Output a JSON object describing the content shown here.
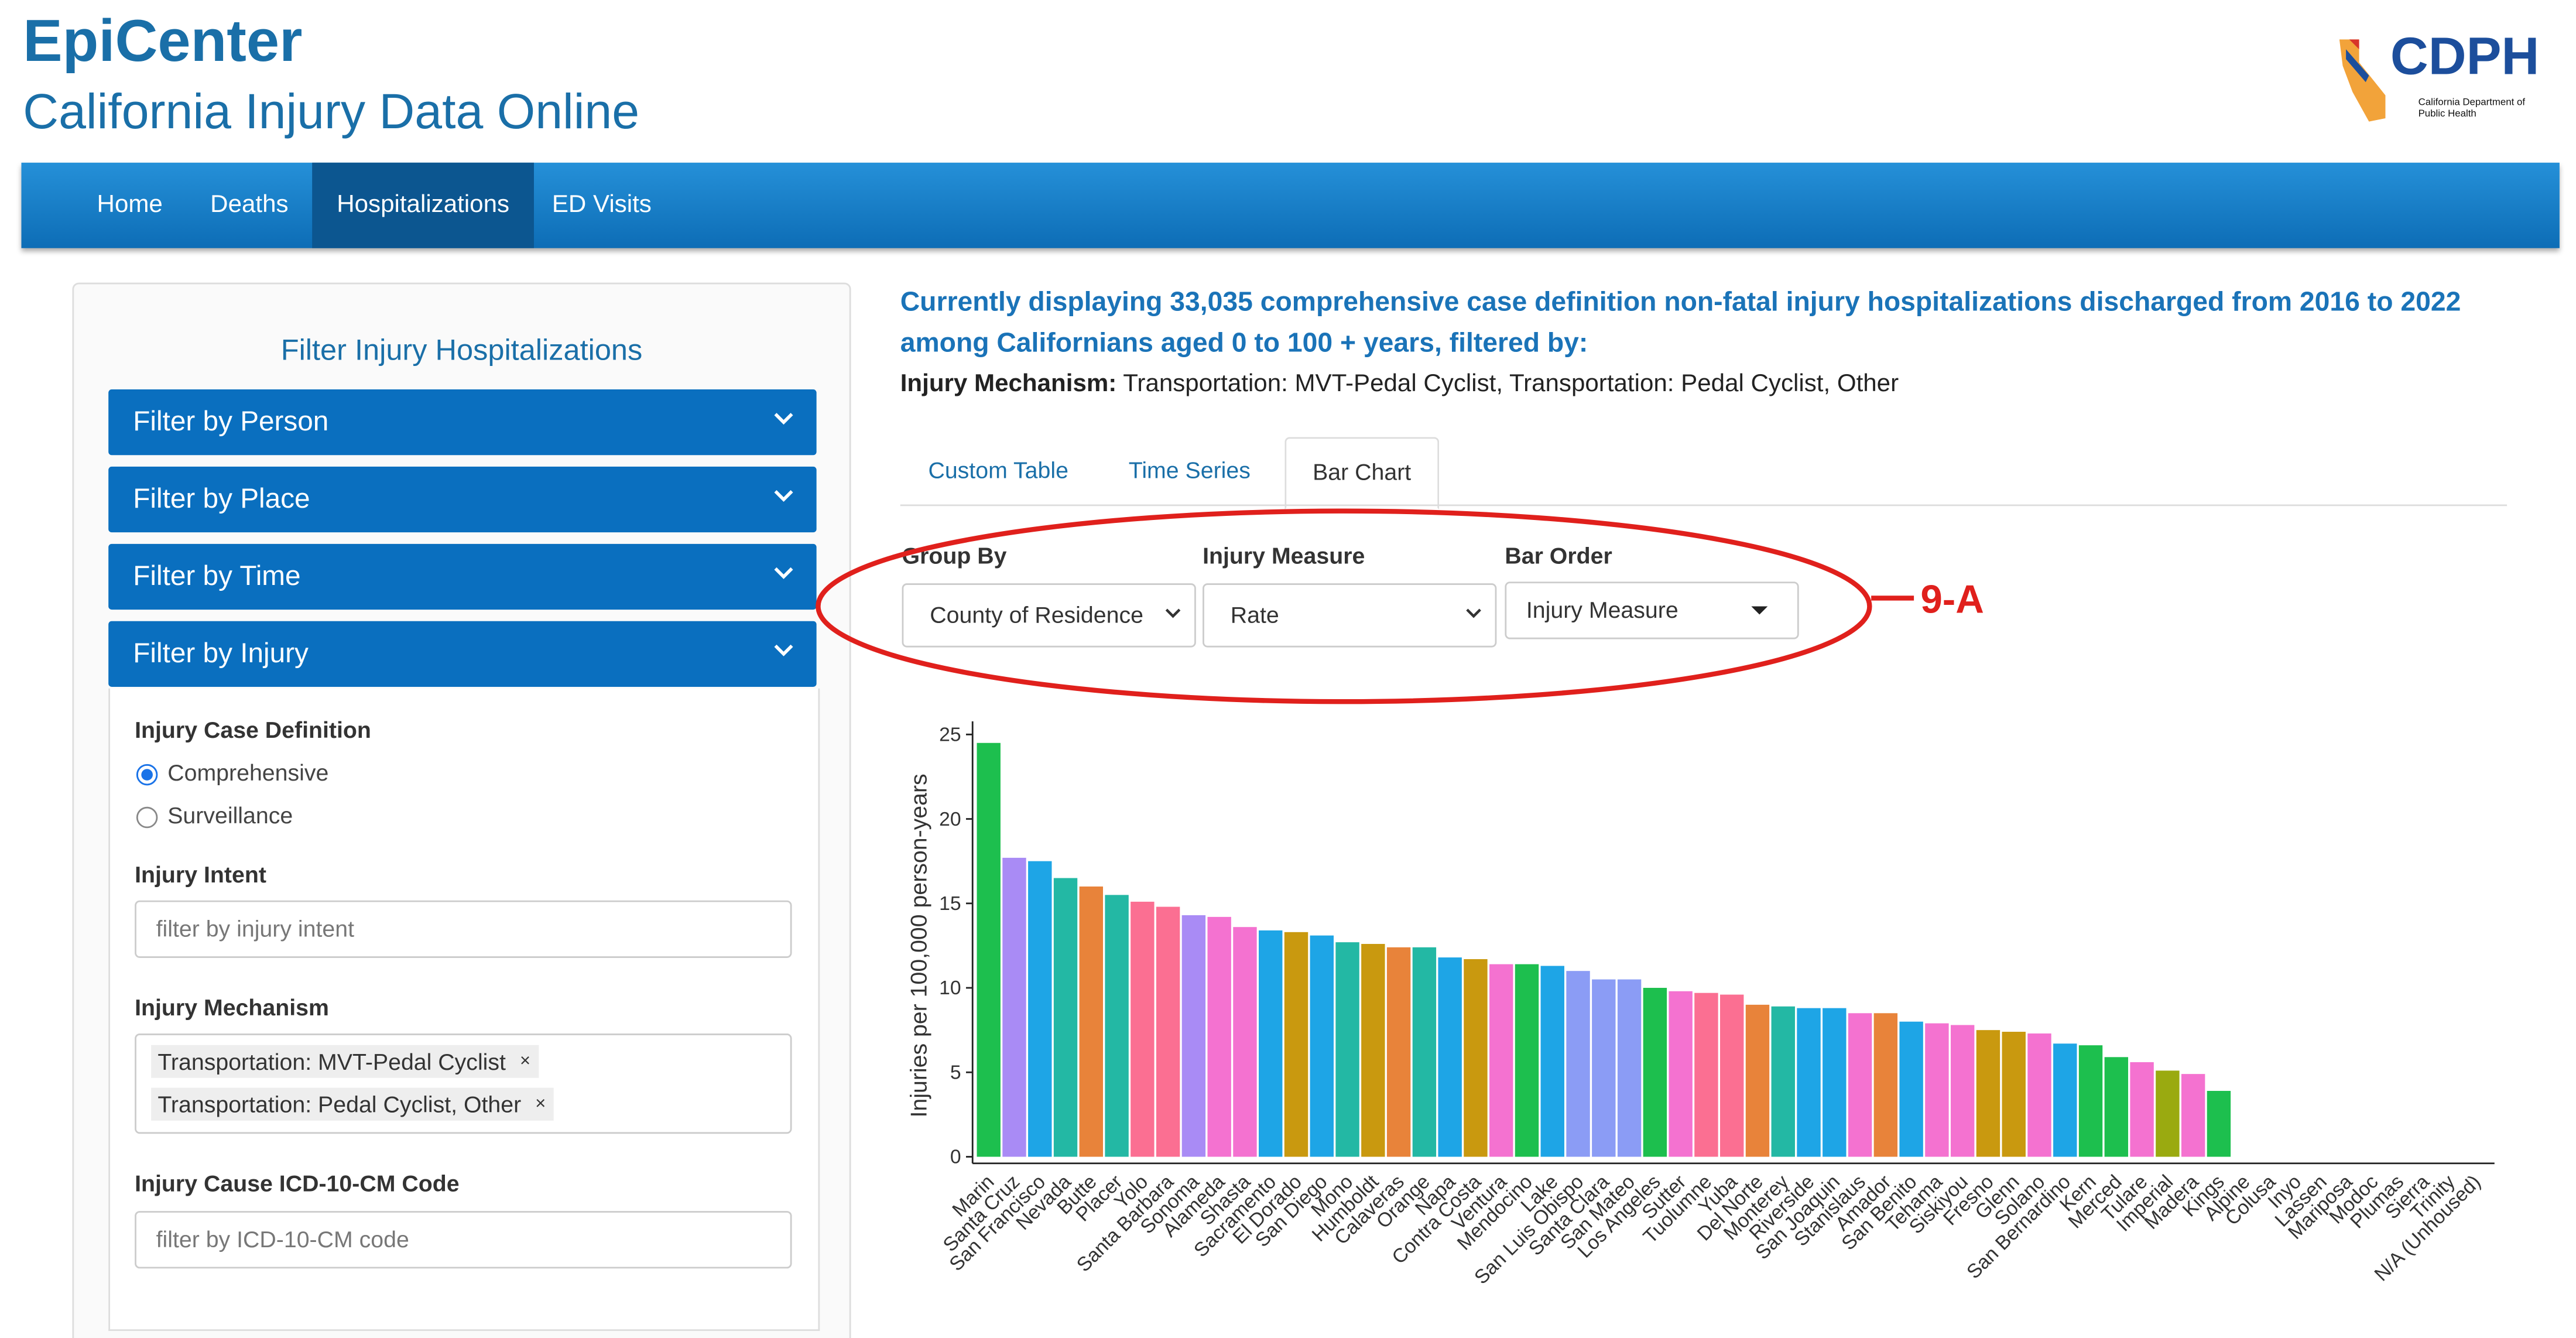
{
  "header": {
    "title": "EpiCenter",
    "subtitle": "California Injury Data Online",
    "logo_text": "CDPH",
    "logo_subtext": "California Department of Public Health"
  },
  "nav": {
    "items": [
      "Home",
      "Deaths",
      "Hospitalizations",
      "ED Visits"
    ],
    "active": 2
  },
  "filter_panel": {
    "title": "Filter Injury Hospitalizations",
    "sections": [
      "Filter by Person",
      "Filter by Place",
      "Filter by Time",
      "Filter by Injury"
    ],
    "case_definition": {
      "label": "Injury Case Definition",
      "options": [
        "Comprehensive",
        "Surveillance"
      ],
      "selected": 0
    },
    "intent": {
      "label": "Injury Intent",
      "placeholder": "filter by injury intent"
    },
    "mechanism": {
      "label": "Injury Mechanism",
      "tags": [
        "Transportation: MVT-Pedal Cyclist",
        "Transportation: Pedal Cyclist, Other"
      ]
    },
    "icd_code": {
      "label": "Injury Cause ICD-10-CM Code",
      "placeholder": "filter by ICD-10-CM code"
    }
  },
  "description": {
    "headline": "Currently displaying 33,035 comprehensive case definition non-fatal injury hospitalizations discharged from 2016 to 2022 among Californians aged 0 to 100 + years, filtered by:",
    "filter_label": "Injury Mechanism:",
    "filter_value": "Transportation: MVT-Pedal Cyclist, Transportation: Pedal Cyclist, Other"
  },
  "tabs": {
    "items": [
      "Custom Table",
      "Time Series",
      "Bar Chart"
    ],
    "active": 2
  },
  "controls": [
    {
      "label": "Group By",
      "value": "County of Residence"
    },
    {
      "label": "Injury Measure",
      "value": "Rate"
    },
    {
      "label": "Bar Order",
      "value": "Injury Measure"
    }
  ],
  "annotation": "9-A",
  "chart_data": {
    "type": "bar",
    "y_label": "Injuries per 100,000 person-years",
    "categories": [
      "Marin",
      "Santa Cruz",
      "San Francisco",
      "Nevada",
      "Butte",
      "Placer",
      "Yolo",
      "Santa Barbara",
      "Sonoma",
      "Alameda",
      "Shasta",
      "Sacramento",
      "El Dorado",
      "San Diego",
      "Mono",
      "Humboldt",
      "Calaveras",
      "Orange",
      "Napa",
      "Contra Costa",
      "Ventura",
      "Mendocino",
      "Lake",
      "San Luis Obispo",
      "Santa Clara",
      "San Mateo",
      "Los Angeles",
      "Sutter",
      "Tuolumne",
      "Yuba",
      "Del Norte",
      "Monterey",
      "Riverside",
      "San Joaquin",
      "Stanislaus",
      "Amador",
      "San Benito",
      "Tehama",
      "Siskiyou",
      "Fresno",
      "Glenn",
      "Solano",
      "San Bernardino",
      "Kern",
      "Merced",
      "Tulare",
      "Imperial",
      "Madera",
      "Kings",
      "Alpine",
      "Colusa",
      "Inyo",
      "Lassen",
      "Mariposa",
      "Modoc",
      "Plumas",
      "Sierra",
      "Trinity",
      "N/A (Unhoused)"
    ],
    "values": [
      24.5,
      17.7,
      17.5,
      16.5,
      16.0,
      15.5,
      15.1,
      14.8,
      14.3,
      14.2,
      13.6,
      13.4,
      13.3,
      13.1,
      12.7,
      12.6,
      12.4,
      12.4,
      11.8,
      11.7,
      11.4,
      11.4,
      11.3,
      11.0,
      10.5,
      10.5,
      10.0,
      9.8,
      9.7,
      9.6,
      9.0,
      8.9,
      8.8,
      8.8,
      8.5,
      8.5,
      8.0,
      7.9,
      7.8,
      7.5,
      7.4,
      7.3,
      6.7,
      6.6,
      5.9,
      5.6,
      5.1,
      4.9,
      3.9,
      null,
      null,
      null,
      null,
      null,
      null,
      null,
      null,
      null,
      null
    ],
    "colors": [
      "#1dbf4e",
      "#a98bf5",
      "#1ea5e6",
      "#23b8a4",
      "#e8833a",
      "#23b8a4",
      "#fb6f92",
      "#fb6f92",
      "#a98bf5",
      "#f472d0",
      "#f472d0",
      "#1ea5e6",
      "#c9990f",
      "#1ea5e6",
      "#23b8a4",
      "#c9990f",
      "#e8833a",
      "#23b8a4",
      "#1ea5e6",
      "#c9990f",
      "#f472d0",
      "#1dbf4e",
      "#1ea5e6",
      "#8b9cf5",
      "#8b9cf5",
      "#8b9cf5",
      "#1dbf4e",
      "#f472d0",
      "#fb6f92",
      "#fb6f92",
      "#e8833a",
      "#23b8a4",
      "#1ea5e6",
      "#1ea5e6",
      "#f472d0",
      "#e8833a",
      "#1ea5e6",
      "#f472d0",
      "#f472d0",
      "#c9990f",
      "#c9990f",
      "#f472d0",
      "#1ea5e6",
      "#1dbf4e",
      "#1dbf4e",
      "#f472d0",
      "#9aaa10",
      "#f472d0",
      "#1dbf4e",
      null,
      null,
      null,
      null,
      null,
      null,
      null,
      null,
      null,
      null
    ],
    "ylim": [
      0,
      25
    ],
    "yticks": [
      0,
      5,
      10,
      15,
      20,
      25
    ]
  }
}
